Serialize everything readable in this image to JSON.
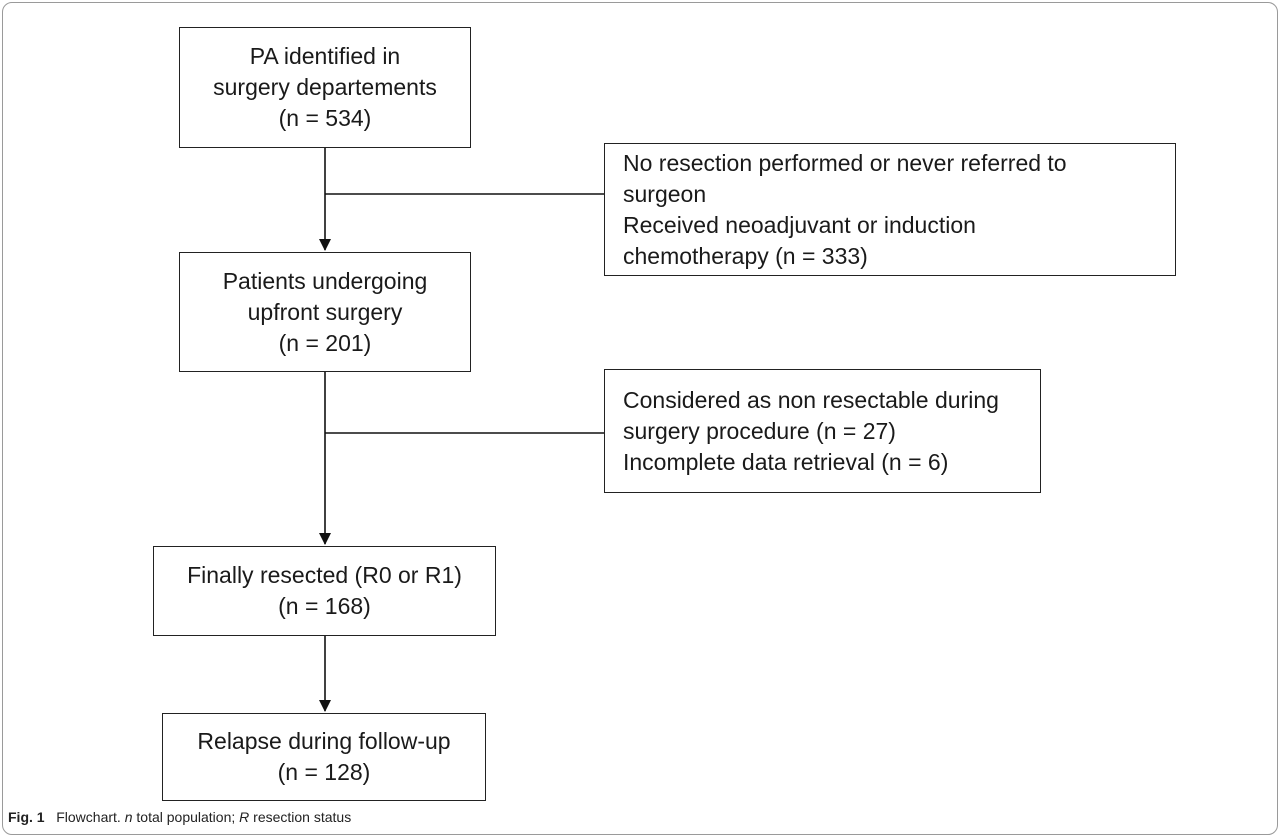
{
  "flowchart": {
    "main_boxes": [
      {
        "lines": [
          "PA identified in",
          "surgery departements",
          "(n = 534)"
        ]
      },
      {
        "lines": [
          "Patients undergoing",
          "upfront surgery",
          "(n = 201)"
        ]
      },
      {
        "lines": [
          "Finally resected (R0 or R1)",
          "(n = 168)"
        ]
      },
      {
        "lines": [
          "Relapse during follow-up",
          "(n = 128)"
        ]
      }
    ],
    "exclusion_boxes": [
      {
        "lines": [
          "No resection performed or never referred to",
          "surgeon",
          "Received neoadjuvant or induction",
          "chemotherapy (n = 333)"
        ]
      },
      {
        "lines": [
          "Considered as non resectable during",
          "surgery procedure (n = 27)",
          "Incomplete data retrieval (n = 6)"
        ]
      }
    ]
  },
  "caption": {
    "fig_label": "Fig. 1",
    "text_a": "Flowchart.",
    "term_n": "n",
    "text_b": "total population;",
    "term_r": "R",
    "text_c": "resection status"
  }
}
